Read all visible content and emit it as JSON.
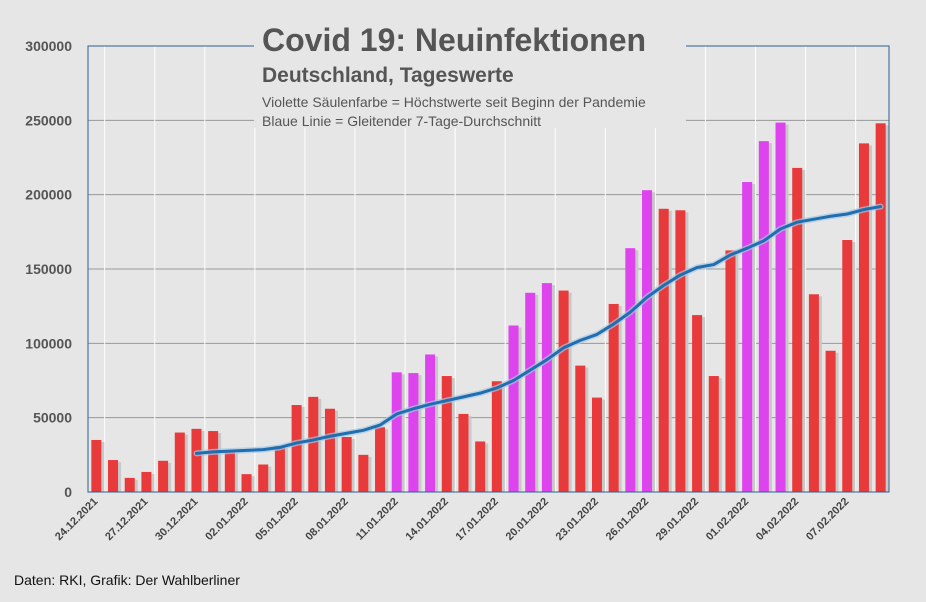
{
  "chart_data": {
    "type": "bar",
    "title": "Covid 19: Neuinfektionen",
    "subtitle": "Deutschland, Tageswerte",
    "notes": [
      "Violette Säulenfarbe = Höchstwerte seit Beginn der Pandemie",
      "Blaue Linie = Gleitender 7-Tage-Durchschnitt"
    ],
    "source": "Daten: RKI, Grafik: Der Wahlberliner",
    "ylim": [
      0,
      300000
    ],
    "yticks": [
      "0",
      "50000",
      "100000",
      "150000",
      "200000",
      "250000",
      "300000"
    ],
    "xtick_labels": [
      "24.12.2021",
      "27.12.2021",
      "30.12.2021",
      "02.01.2022",
      "05.01.2022",
      "08.01.2022",
      "11.01.2022",
      "14.01.2022",
      "17.01.2022",
      "20.01.2022",
      "23.01.2022",
      "26.01.2022",
      "29.01.2022",
      "01.02.2022",
      "04.02.2022",
      "07.02.2022"
    ],
    "grid": true,
    "colors": {
      "normal": "#e83a3a",
      "record": "#dd44ee",
      "average_line": "#1f6eb0",
      "grid": "#999999"
    },
    "series": [
      {
        "name": "Tageswerte",
        "values": [
          35000,
          21500,
          9500,
          13500,
          21000,
          40000,
          42500,
          41000,
          27000,
          12000,
          18500,
          31000,
          58500,
          64000,
          56000,
          37000,
          25000,
          43500,
          80500,
          80000,
          92500,
          78000,
          52500,
          34000,
          74500,
          112000,
          134000,
          140500,
          135500,
          85000,
          63500,
          126500,
          164000,
          203000,
          190500,
          189500,
          119000,
          78000,
          162500,
          208500,
          236000,
          248500,
          218000,
          133000,
          95000,
          169500,
          234500,
          248000
        ],
        "record": [
          false,
          false,
          false,
          false,
          false,
          false,
          false,
          false,
          false,
          false,
          false,
          false,
          false,
          false,
          false,
          false,
          false,
          false,
          true,
          true,
          true,
          false,
          false,
          false,
          false,
          true,
          true,
          true,
          false,
          false,
          false,
          false,
          true,
          true,
          false,
          false,
          false,
          false,
          false,
          true,
          true,
          true,
          false,
          false,
          false,
          false,
          false,
          false
        ]
      },
      {
        "name": "Gleitender 7-Tage-Durchschnitt",
        "start_index": 6,
        "values": [
          26000,
          27000,
          27500,
          28000,
          28500,
          30000,
          33000,
          35000,
          37500,
          39500,
          41500,
          45000,
          52500,
          56000,
          59000,
          61500,
          64000,
          66500,
          70000,
          75000,
          82000,
          89000,
          97000,
          102000,
          106000,
          113000,
          121000,
          131000,
          139000,
          146000,
          151000,
          153000,
          159500,
          164000,
          169000,
          177000,
          181500,
          183500,
          185500,
          187000,
          190000,
          192000
        ]
      }
    ]
  }
}
